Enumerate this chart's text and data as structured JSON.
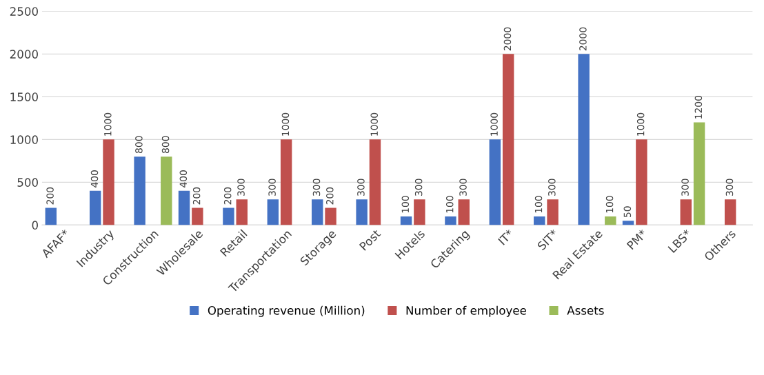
{
  "chart_data": {
    "type": "bar",
    "categories": [
      "AFAF*",
      "Industry",
      "Construction",
      "Wholesale",
      "Retail",
      "Transportation",
      "Storage",
      "Post",
      "Hotels",
      "Catering",
      "IT*",
      "SIT*",
      "Real Estate",
      "PM*",
      "LBS*",
      "Others"
    ],
    "series": [
      {
        "name": "Operating revenue (Million)",
        "color": "#4472c4",
        "values": [
          200,
          400,
          800,
          400,
          200,
          300,
          300,
          300,
          100,
          100,
          1000,
          100,
          2000,
          50,
          null,
          null
        ]
      },
      {
        "name": "Number of employee",
        "color": "#c0504d",
        "values": [
          null,
          1000,
          null,
          200,
          300,
          1000,
          200,
          1000,
          300,
          300,
          2000,
          300,
          null,
          1000,
          300,
          300
        ]
      },
      {
        "name": "Assets",
        "color": "#9bbb59",
        "values": [
          null,
          null,
          800,
          null,
          null,
          null,
          null,
          null,
          null,
          null,
          null,
          null,
          100,
          null,
          1200,
          null
        ]
      }
    ],
    "ylim": [
      0,
      2500
    ],
    "yticks": [
      0,
      500,
      1000,
      1500,
      2000,
      2500
    ],
    "grid": "y",
    "legend": "bottom",
    "data_labels": true
  }
}
